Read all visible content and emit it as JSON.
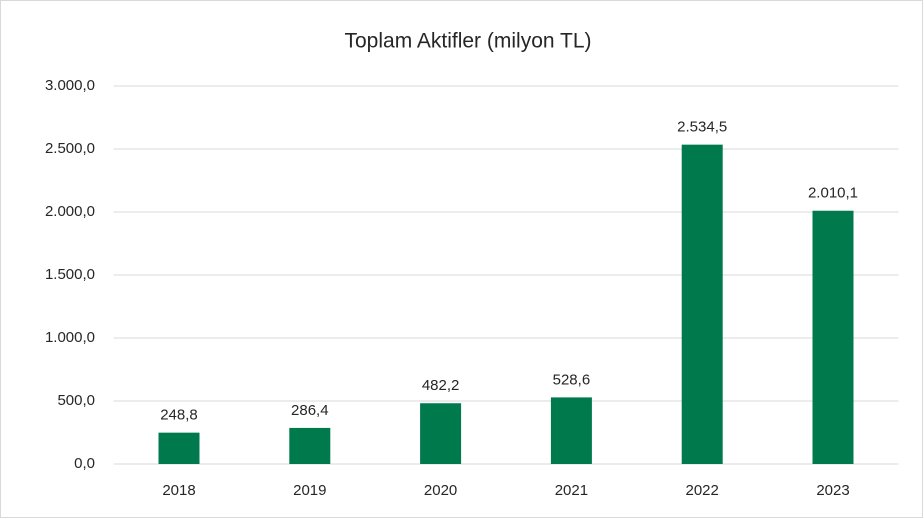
{
  "chart_data": {
    "type": "bar",
    "title": "Toplam Aktifler (milyon TL)",
    "categories": [
      "2018",
      "2019",
      "2020",
      "2021",
      "2022",
      "2023"
    ],
    "values": [
      248.8,
      286.4,
      482.2,
      528.6,
      2534.5,
      2010.1
    ],
    "value_labels": [
      "248,8",
      "286,4",
      "482,2",
      "528,6",
      "2.534,5",
      "2.010,1"
    ],
    "color": "#007a4d",
    "ylim": [
      0,
      3000
    ],
    "yticks": [
      {
        "value": 0,
        "label": "0,0"
      },
      {
        "value": 500,
        "label": "500,0"
      },
      {
        "value": 1000,
        "label": "1.000,0"
      },
      {
        "value": 1500,
        "label": "1.500,0"
      },
      {
        "value": 2000,
        "label": "2.000,0"
      },
      {
        "value": 2500,
        "label": "2.500,0"
      },
      {
        "value": 3000,
        "label": "3.000,0"
      }
    ],
    "grid": true
  }
}
